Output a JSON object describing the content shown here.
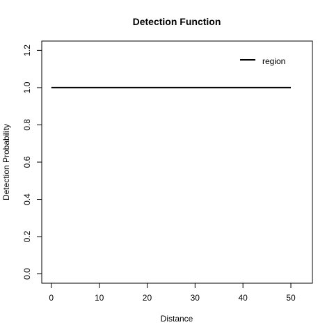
{
  "chart_data": {
    "type": "line",
    "title": "Detection Function",
    "xlabel": "Distance",
    "ylabel": "Detection Probability",
    "xlim": [
      -2,
      54.5
    ],
    "ylim": [
      -0.05,
      1.25
    ],
    "x_ticks": [
      0,
      10,
      20,
      30,
      40,
      50
    ],
    "x_tick_labels": [
      "0",
      "10",
      "20",
      "30",
      "40",
      "50"
    ],
    "y_ticks": [
      0.0,
      0.2,
      0.4,
      0.6,
      0.8,
      1.0,
      1.2
    ],
    "y_tick_labels": [
      "0.0",
      "0.2",
      "0.4",
      "0.6",
      "0.8",
      "1.0",
      "1.2"
    ],
    "grid": false,
    "legend_position": "top-right",
    "series": [
      {
        "name": "region",
        "color": "#000000",
        "x": [
          0,
          50
        ],
        "y": [
          1.0,
          1.0
        ]
      }
    ]
  }
}
